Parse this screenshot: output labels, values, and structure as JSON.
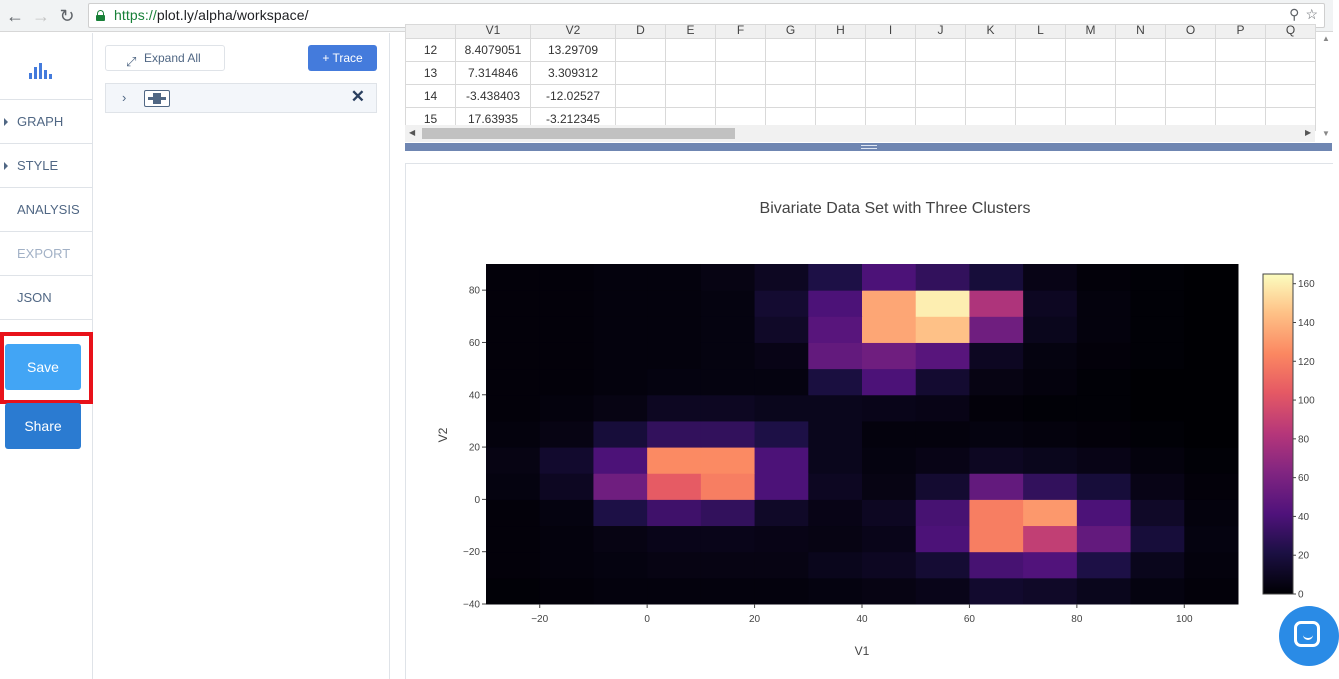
{
  "browser": {
    "url_protocol": "https://",
    "url_rest": "plot.ly/alpha/workspace/",
    "back_icon": "back-arrow-icon",
    "forward_icon": "forward-arrow-icon",
    "reload_icon": "reload-icon",
    "lock_icon": "lock-icon"
  },
  "sidebar": {
    "items": [
      {
        "label": "GRAPH",
        "caret": true,
        "disabled": false
      },
      {
        "label": "STYLE",
        "caret": true,
        "disabled": false
      },
      {
        "label": "ANALYSIS",
        "caret": false,
        "disabled": false
      },
      {
        "label": "EXPORT",
        "caret": false,
        "disabled": true
      },
      {
        "label": "JSON",
        "caret": false,
        "disabled": false
      }
    ],
    "save_label": "Save",
    "share_label": "Share"
  },
  "panel": {
    "expand_label": "Expand All",
    "trace_label": "+ Trace"
  },
  "grid": {
    "columns": [
      "V1",
      "V2",
      "D",
      "E",
      "F",
      "G",
      "H",
      "I",
      "J",
      "K",
      "L",
      "M",
      "N",
      "O",
      "P",
      "Q"
    ],
    "rows": [
      {
        "num": "12",
        "v1": "8.4079051",
        "v2": "13.29709"
      },
      {
        "num": "13",
        "v1": "7.314846",
        "v2": "3.309312"
      },
      {
        "num": "14",
        "v1": "-3.438403",
        "v2": "-12.02527"
      },
      {
        "num": "15",
        "v1": "17.63935",
        "v2": "-3.212345"
      }
    ]
  },
  "chart_data": {
    "type": "heatmap",
    "title": "Bivariate Data Set with Three Clusters",
    "xlabel": "V1",
    "ylabel": "V2",
    "xlim": [
      -30,
      110
    ],
    "ylim": [
      -40,
      90
    ],
    "x_ticks": [
      -20,
      0,
      20,
      40,
      60,
      80,
      100
    ],
    "y_ticks": [
      -40,
      -20,
      0,
      20,
      40,
      60,
      80
    ],
    "bin_size": 10,
    "x_bin_starts": [
      -30,
      -20,
      -10,
      0,
      10,
      20,
      30,
      40,
      50,
      60,
      70,
      80,
      90,
      100
    ],
    "y_bin_starts": [
      -40,
      -30,
      -20,
      -10,
      0,
      10,
      20,
      30,
      40,
      50,
      60,
      70,
      80
    ],
    "z": [
      [
        1,
        2,
        3,
        3,
        3,
        3,
        4,
        5,
        7,
        14,
        12,
        8,
        4,
        2
      ],
      [
        2,
        3,
        4,
        5,
        5,
        5,
        8,
        10,
        16,
        38,
        42,
        22,
        8,
        3
      ],
      [
        2,
        3,
        5,
        7,
        7,
        6,
        5,
        7,
        40,
        120,
        88,
        50,
        18,
        4
      ],
      [
        2,
        4,
        22,
        35,
        30,
        12,
        6,
        10,
        38,
        120,
        130,
        40,
        12,
        3
      ],
      [
        4,
        10,
        55,
        105,
        120,
        40,
        10,
        5,
        15,
        50,
        30,
        18,
        6,
        2
      ],
      [
        5,
        14,
        40,
        125,
        125,
        40,
        8,
        4,
        6,
        10,
        8,
        6,
        3,
        1
      ],
      [
        3,
        5,
        18,
        30,
        30,
        22,
        8,
        3,
        3,
        4,
        3,
        2,
        1,
        0
      ],
      [
        2,
        3,
        5,
        10,
        10,
        8,
        8,
        7,
        6,
        2,
        1,
        1,
        0,
        0
      ],
      [
        2,
        2,
        3,
        4,
        4,
        4,
        20,
        40,
        15,
        5,
        3,
        1,
        0,
        0
      ],
      [
        2,
        2,
        3,
        3,
        4,
        6,
        50,
        55,
        45,
        10,
        4,
        2,
        1,
        0
      ],
      [
        2,
        2,
        3,
        3,
        4,
        12,
        45,
        135,
        145,
        55,
        8,
        3,
        1,
        0
      ],
      [
        2,
        2,
        3,
        3,
        4,
        15,
        40,
        135,
        160,
        80,
        10,
        3,
        1,
        0
      ],
      [
        2,
        2,
        3,
        3,
        5,
        10,
        22,
        40,
        30,
        18,
        6,
        2,
        1,
        0
      ]
    ],
    "colorscale": "magma",
    "colorbar_ticks": [
      0,
      20,
      40,
      60,
      80,
      100,
      120,
      140,
      160
    ],
    "zmax": 165
  }
}
